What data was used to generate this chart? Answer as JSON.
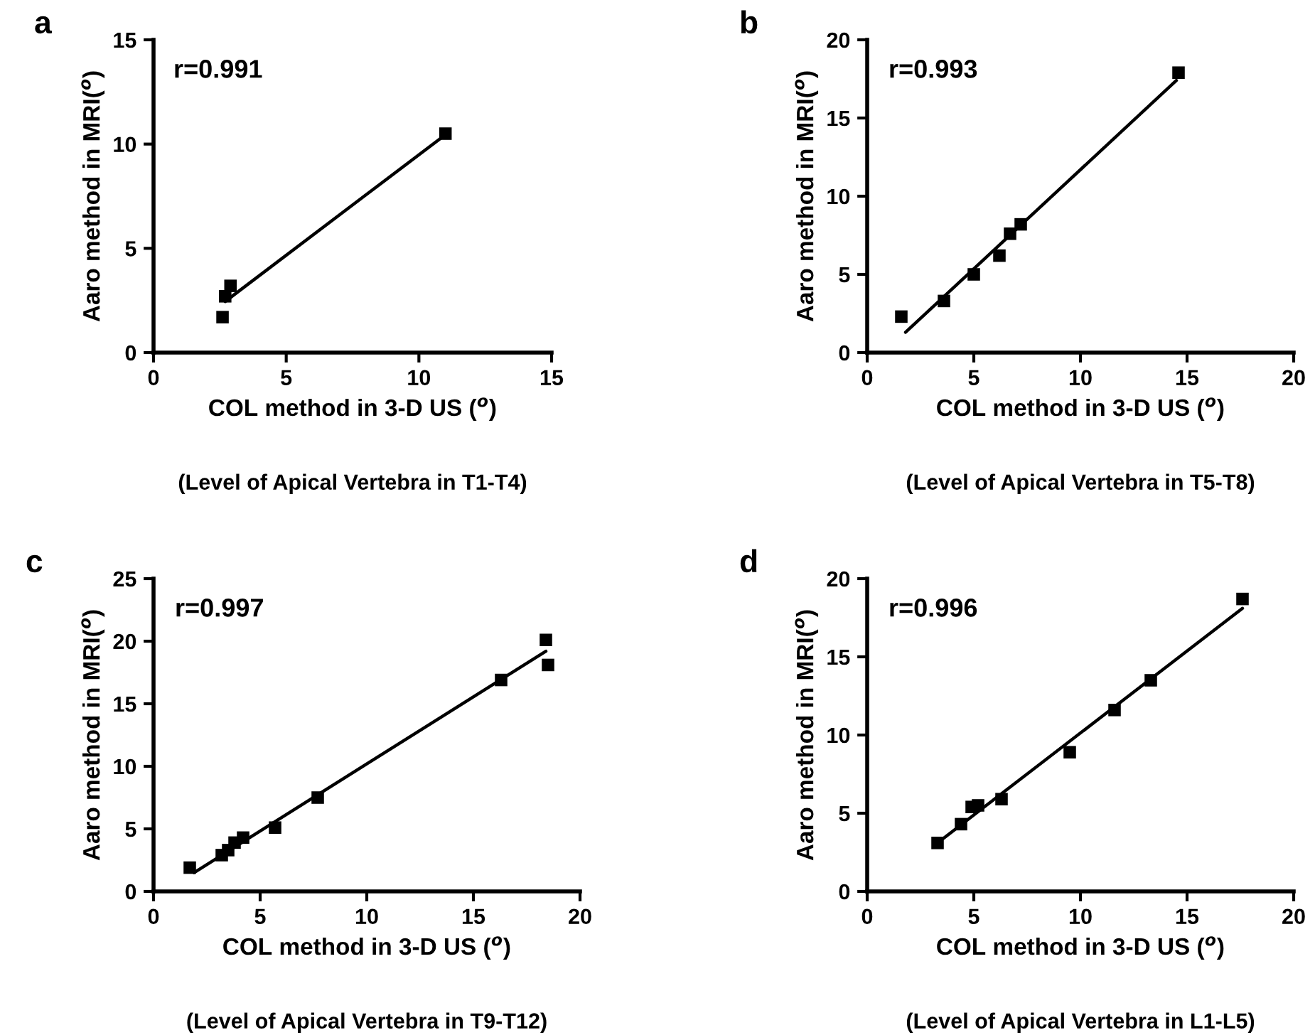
{
  "chart_data": [
    {
      "type": "scatter",
      "xlabel": "COL method in 3-D US ($^{o}$)",
      "ylabel": "Aaro method in MRI($^{o}$)",
      "annotations": [
        "a",
        "r=0.991",
        "(Level of Apical Vertebra in T1-T4)"
      ],
      "xlim": [
        0,
        15
      ],
      "xticks": [
        0,
        5,
        10,
        15
      ],
      "ylim": [
        0,
        15
      ],
      "yticks": [
        0,
        5,
        10,
        15
      ],
      "grid": false,
      "marker": "square",
      "series": [
        {
          "color": "#000000",
          "x": [
            2.6,
            2.7,
            2.9,
            11.0
          ],
          "values": [
            1.7,
            2.7,
            3.2,
            10.5
          ]
        },
        {
          "type": "line",
          "color": "#000000",
          "line_style": "solid",
          "marker": "none",
          "x": [
            2.7,
            11.0
          ],
          "values": [
            2.45,
            10.45
          ]
        }
      ]
    },
    {
      "type": "scatter",
      "xlabel": "COL method in 3-D US ($^{o}$)",
      "ylabel": "Aaro method in MRI($^{o}$)",
      "annotations": [
        "b",
        "r=0.993",
        "(Level of Apical Vertebra in T5-T8)"
      ],
      "xlim": [
        0,
        20
      ],
      "xticks": [
        0,
        5,
        10,
        15,
        20
      ],
      "ylim": [
        0,
        20
      ],
      "yticks": [
        0,
        5,
        10,
        15,
        20
      ],
      "grid": false,
      "marker": "square",
      "series": [
        {
          "color": "#000000",
          "x": [
            1.6,
            3.6,
            5.0,
            6.2,
            6.7,
            7.2,
            14.6
          ],
          "values": [
            2.3,
            3.3,
            5.0,
            6.2,
            7.6,
            8.2,
            17.9
          ]
        },
        {
          "type": "line",
          "color": "#000000",
          "line_style": "solid",
          "marker": "none",
          "x": [
            1.8,
            14.5
          ],
          "values": [
            1.3,
            17.4
          ]
        }
      ]
    },
    {
      "type": "scatter",
      "xlabel": "COL method in 3-D US ($^{o}$)",
      "ylabel": "Aaro method in MRI($^{o}$)",
      "annotations": [
        "c",
        "r=0.997",
        "(Level of Apical Vertebra in T9-T12)"
      ],
      "xlim": [
        0,
        20
      ],
      "xticks": [
        0,
        5,
        10,
        15,
        20
      ],
      "ylim": [
        0,
        25
      ],
      "yticks": [
        0,
        5,
        10,
        15,
        20,
        25
      ],
      "grid": false,
      "marker": "square",
      "series": [
        {
          "color": "#000000",
          "x": [
            1.7,
            3.2,
            3.5,
            3.8,
            4.2,
            5.7,
            7.7,
            16.3,
            18.4,
            18.5
          ],
          "values": [
            1.9,
            2.9,
            3.3,
            3.9,
            4.3,
            5.1,
            7.5,
            16.9,
            20.1,
            18.1
          ]
        },
        {
          "type": "line",
          "color": "#000000",
          "line_style": "solid",
          "marker": "none",
          "x": [
            1.9,
            18.4
          ],
          "values": [
            1.5,
            19.2
          ]
        }
      ]
    },
    {
      "type": "scatter",
      "xlabel": "COL method in 3-D US ($^{o}$)",
      "ylabel": "Aaro method in MRI($^{o}$)",
      "annotations": [
        "d",
        "r=0.996",
        "(Level of Apical Vertebra in L1-L5)"
      ],
      "xlim": [
        0,
        20
      ],
      "xticks": [
        0,
        5,
        10,
        15,
        20
      ],
      "ylim": [
        0,
        20
      ],
      "yticks": [
        0,
        5,
        10,
        15,
        20
      ],
      "grid": false,
      "marker": "square",
      "series": [
        {
          "color": "#000000",
          "x": [
            3.3,
            4.4,
            4.9,
            5.2,
            6.3,
            9.5,
            11.6,
            13.3,
            17.6
          ],
          "values": [
            3.1,
            4.3,
            5.4,
            5.5,
            5.9,
            8.9,
            11.6,
            13.5,
            18.7
          ]
        },
        {
          "type": "line",
          "color": "#000000",
          "line_style": "solid",
          "marker": "none",
          "x": [
            3.3,
            17.6
          ],
          "values": [
            3.1,
            18.1
          ]
        }
      ]
    }
  ]
}
